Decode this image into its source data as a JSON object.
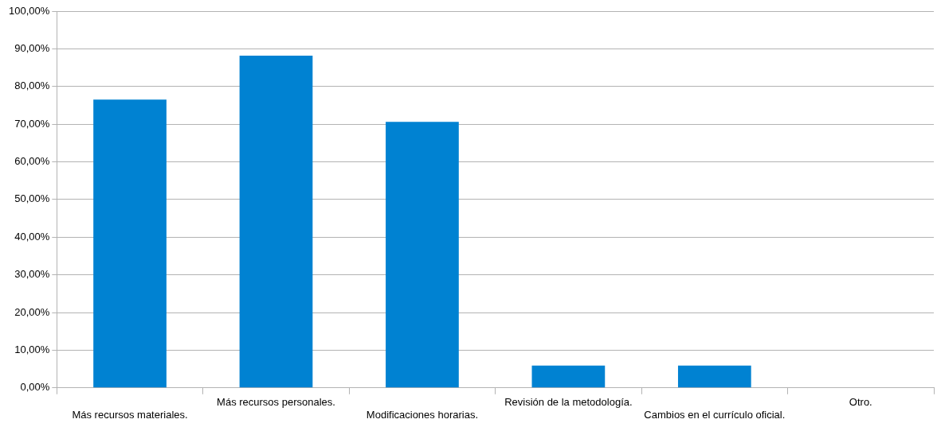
{
  "chart_data": {
    "type": "bar",
    "categories": [
      "Más recursos materiales.",
      "Más recursos personales.",
      "Modificaciones horarias.",
      "Revisión de la metodología.",
      "Cambios en el currículo oficial.",
      "Otro."
    ],
    "values": [
      76.5,
      88.2,
      70.6,
      5.9,
      5.9,
      0
    ],
    "color": "#0082d2",
    "ylim": [
      0,
      100
    ],
    "yticks": [
      {
        "value": 0,
        "label": "0,00%"
      },
      {
        "value": 10,
        "label": "10,00%"
      },
      {
        "value": 20,
        "label": "20,00%"
      },
      {
        "value": 30,
        "label": "30,00%"
      },
      {
        "value": 40,
        "label": "40,00%"
      },
      {
        "value": 50,
        "label": "50,00%"
      },
      {
        "value": 60,
        "label": "60,00%"
      },
      {
        "value": 70,
        "label": "70,00%"
      },
      {
        "value": 80,
        "label": "80,00%"
      },
      {
        "value": 90,
        "label": "90,00%"
      },
      {
        "value": 100,
        "label": "100,00%"
      }
    ],
    "grid": "y",
    "legend": false
  }
}
